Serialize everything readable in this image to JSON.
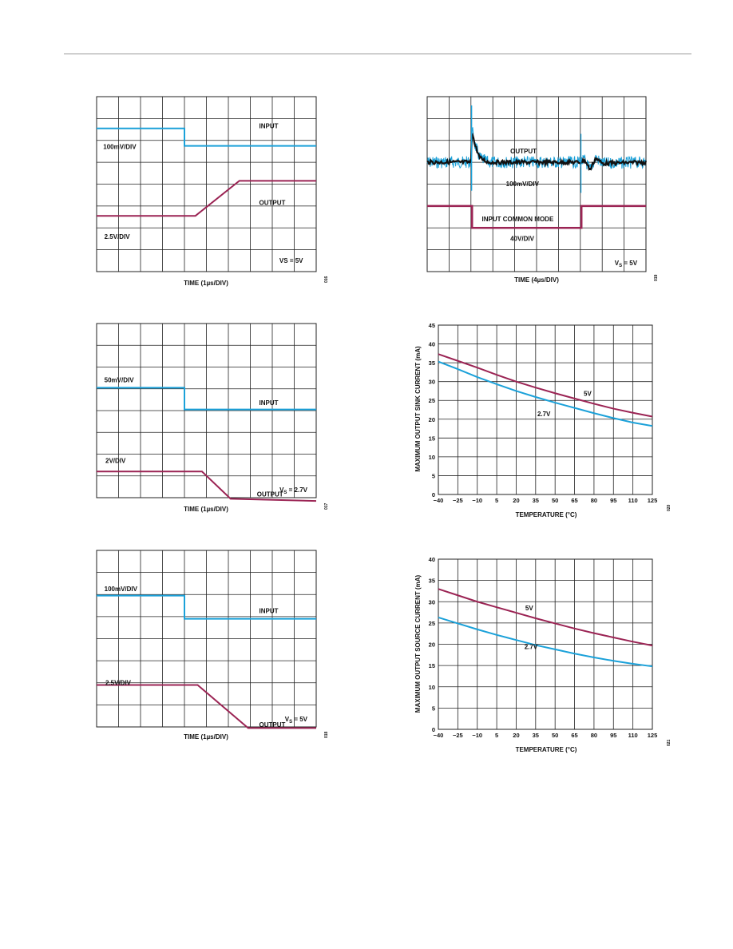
{
  "colors": {
    "blue": "#1ba1d9",
    "maroon": "#9b2454",
    "black": "#111111",
    "grid": "#222222"
  },
  "chart_data": [
    {
      "type": "line",
      "kind": "scope",
      "xlabel": "TIME (1µs/DIV)",
      "fig_id": "016",
      "annotations": {
        "input": "INPUT",
        "output": "OUTPUT",
        "in_scale": "100mV/DIV",
        "out_scale": "2.5V/DIV",
        "supply": "VS = 5V"
      },
      "traces": [
        {
          "name": "INPUT",
          "color": "blue",
          "points": [
            [
              0,
              1.45
            ],
            [
              4,
              1.45
            ],
            [
              4,
              2.25
            ],
            [
              10,
              2.25
            ]
          ]
        },
        {
          "name": "OUTPUT",
          "color": "maroon",
          "points": [
            [
              0,
              5.45
            ],
            [
              4.5,
              5.45
            ],
            [
              6.5,
              3.85
            ],
            [
              10,
              3.85
            ]
          ]
        }
      ]
    },
    {
      "type": "line",
      "kind": "scope",
      "xlabel": "TIME (4µs/DIV)",
      "fig_id": "019",
      "annotations": {
        "output": "OUTPUT",
        "out_scale": "100mV/DIV",
        "input": "INPUT COMMON MODE",
        "in_scale": "40V/DIV",
        "supply_main": "V",
        "supply_sub": "S",
        "supply_rest": " = 5V"
      },
      "traces": [
        {
          "name": "OUTPUT",
          "color": "black",
          "noisy": true,
          "points": [
            [
              0,
              3.0
            ],
            [
              2.0,
              3.0
            ],
            [
              2.05,
              1.5
            ],
            [
              2.15,
              2.1
            ],
            [
              2.4,
              2.8
            ],
            [
              2.8,
              3.0
            ],
            [
              7.0,
              3.0
            ],
            [
              7.2,
              2.9
            ],
            [
              7.45,
              3.35
            ],
            [
              7.7,
              2.8
            ],
            [
              8.0,
              3.05
            ],
            [
              10,
              3.0
            ]
          ]
        },
        {
          "name": "INPUT COMMON MODE",
          "color": "maroon",
          "points": [
            [
              0,
              5.0
            ],
            [
              2.05,
              5.0
            ],
            [
              2.05,
              6.0
            ],
            [
              7.05,
              6.0
            ],
            [
              7.05,
              5.0
            ],
            [
              10,
              5.0
            ]
          ]
        }
      ]
    },
    {
      "type": "line",
      "kind": "scope",
      "xlabel": "TIME (1µs/DIV)",
      "fig_id": "017",
      "annotations": {
        "input": "INPUT",
        "output": "OUTPUT",
        "in_scale": "50mV/DIV",
        "out_scale": "2V/DIV",
        "supply_main": "V",
        "supply_sub": "S",
        "supply_rest": " = 2.7V"
      },
      "traces": [
        {
          "name": "INPUT",
          "color": "blue",
          "points": [
            [
              0,
              2.95
            ],
            [
              4,
              2.95
            ],
            [
              4,
              3.95
            ],
            [
              10,
              3.95
            ]
          ]
        },
        {
          "name": "OUTPUT",
          "color": "maroon",
          "points": [
            [
              0,
              6.8
            ],
            [
              4.8,
              6.8
            ],
            [
              6.1,
              8.05
            ],
            [
              10,
              8.15
            ]
          ]
        }
      ]
    },
    {
      "type": "line",
      "kind": "scope",
      "xlabel": "TIME (1µs/DIV)",
      "fig_id": "018",
      "annotations": {
        "input": "INPUT",
        "output": "OUTPUT",
        "in_scale": "100mV/DIV",
        "out_scale": "2.5V/DIV",
        "supply_main": "V",
        "supply_sub": "S",
        "supply_rest": " = 5V"
      },
      "traces": [
        {
          "name": "INPUT",
          "color": "blue",
          "points": [
            [
              0,
              2.05
            ],
            [
              4,
              2.05
            ],
            [
              4,
              3.1
            ],
            [
              10,
              3.1
            ]
          ]
        },
        {
          "name": "OUTPUT",
          "color": "maroon",
          "points": [
            [
              0,
              6.1
            ],
            [
              4.6,
              6.1
            ],
            [
              6.9,
              8.05
            ],
            [
              10,
              8.05
            ]
          ]
        }
      ]
    },
    {
      "type": "line",
      "xlabel": "TEMPERATURE (°C)",
      "ylabel": "MAXIMUM OUTPUT SINK CURRENT (mA)",
      "fig_id": "020",
      "xlim": [
        -40,
        125
      ],
      "ylim": [
        0,
        45
      ],
      "xticks": [
        -40,
        -25,
        -10,
        5,
        20,
        35,
        50,
        65,
        80,
        95,
        110,
        125
      ],
      "yticks": [
        0,
        5,
        10,
        15,
        20,
        25,
        30,
        35,
        40,
        45
      ],
      "x": [
        -40,
        -25,
        -10,
        5,
        20,
        35,
        50,
        65,
        80,
        95,
        110,
        125
      ],
      "series": [
        {
          "name": "5V",
          "color": "maroon",
          "values": [
            37.3,
            35.5,
            33.7,
            31.8,
            30.0,
            28.4,
            26.9,
            25.5,
            24.1,
            22.8,
            21.7,
            20.7
          ]
        },
        {
          "name": "2.7V",
          "color": "blue",
          "values": [
            35.3,
            33.3,
            31.2,
            29.3,
            27.5,
            25.9,
            24.4,
            23.0,
            21.6,
            20.3,
            19.1,
            18.2
          ]
        }
      ],
      "grid": true
    },
    {
      "type": "line",
      "xlabel": "TEMPERATURE (°C)",
      "ylabel": "MAXIMUM OUTPUT SOURCE CURRENT (mA)",
      "fig_id": "021",
      "xlim": [
        -40,
        125
      ],
      "ylim": [
        0,
        40
      ],
      "xticks": [
        -40,
        -25,
        -10,
        5,
        20,
        35,
        50,
        65,
        80,
        95,
        110,
        125
      ],
      "yticks": [
        0,
        5,
        10,
        15,
        20,
        25,
        30,
        35,
        40
      ],
      "x": [
        -40,
        -25,
        -10,
        5,
        20,
        35,
        50,
        65,
        80,
        95,
        110,
        125
      ],
      "series": [
        {
          "name": "5V",
          "color": "maroon",
          "values": [
            33.0,
            31.5,
            30.0,
            28.7,
            27.4,
            26.1,
            24.9,
            23.7,
            22.6,
            21.6,
            20.6,
            19.7
          ]
        },
        {
          "name": "2.7V",
          "color": "blue",
          "values": [
            26.3,
            24.9,
            23.5,
            22.2,
            21.0,
            19.8,
            18.8,
            17.8,
            16.9,
            16.1,
            15.4,
            14.8
          ]
        }
      ],
      "grid": true
    }
  ]
}
